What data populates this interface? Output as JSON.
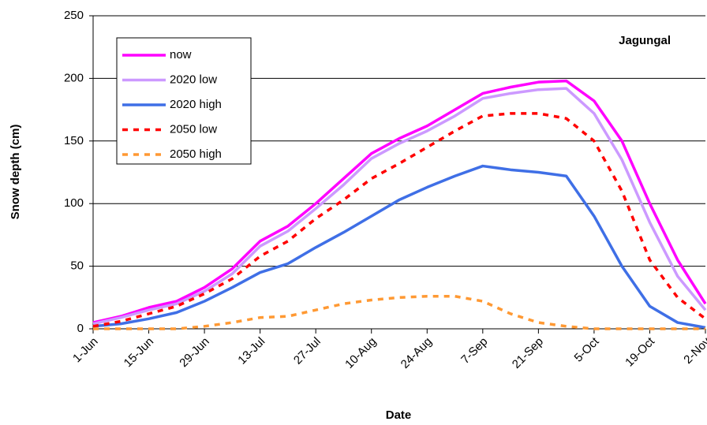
{
  "chart_data": {
    "type": "line",
    "annotation": "Jagungal",
    "x_label": "Date",
    "y_label": "Snow depth (cm)",
    "categories": [
      "1-Jun",
      null,
      "15-Jun",
      null,
      "29-Jun",
      null,
      "13-Jul",
      null,
      "27-Jul",
      null,
      "10-Aug",
      null,
      "24-Aug",
      null,
      "7-Sep",
      null,
      "21-Sep",
      null,
      "5-Oct",
      null,
      "19-Oct",
      null,
      "2-Nov"
    ],
    "series": [
      {
        "name": "now",
        "color": "#ff00ff",
        "dash": false,
        "values": [
          5,
          10,
          17,
          22,
          33,
          48,
          70,
          82,
          100,
          120,
          140,
          152,
          162,
          175,
          188,
          193,
          197,
          198,
          182,
          150,
          100,
          55,
          20
        ]
      },
      {
        "name": "2020 low",
        "color": "#cc99ff",
        "dash": false,
        "values": [
          4,
          9,
          15,
          20,
          30,
          44,
          66,
          78,
          96,
          115,
          136,
          148,
          158,
          170,
          184,
          188,
          191,
          192,
          172,
          135,
          85,
          42,
          15
        ]
      },
      {
        "name": "2020 high",
        "color": "#3f6fe6",
        "dash": false,
        "values": [
          2,
          4,
          8,
          13,
          22,
          33,
          45,
          52,
          65,
          77,
          90,
          103,
          113,
          122,
          130,
          127,
          125,
          122,
          90,
          50,
          18,
          5,
          1
        ]
      },
      {
        "name": "2050 low",
        "color": "#ff0000",
        "dash": true,
        "values": [
          2,
          6,
          12,
          18,
          28,
          40,
          58,
          70,
          88,
          103,
          120,
          132,
          145,
          158,
          170,
          172,
          172,
          168,
          150,
          110,
          55,
          25,
          8
        ]
      },
      {
        "name": "2050 high",
        "color": "#ff9933",
        "dash": true,
        "values": [
          0,
          0,
          0,
          0,
          2,
          5,
          9,
          10,
          15,
          20,
          23,
          25,
          26,
          26,
          22,
          12,
          5,
          2,
          0,
          0,
          0,
          0,
          0
        ]
      }
    ],
    "ylim": [
      0,
      250
    ],
    "yticks": [
      0,
      50,
      100,
      150,
      200,
      250
    ],
    "grid": true,
    "legend": "top-left"
  }
}
